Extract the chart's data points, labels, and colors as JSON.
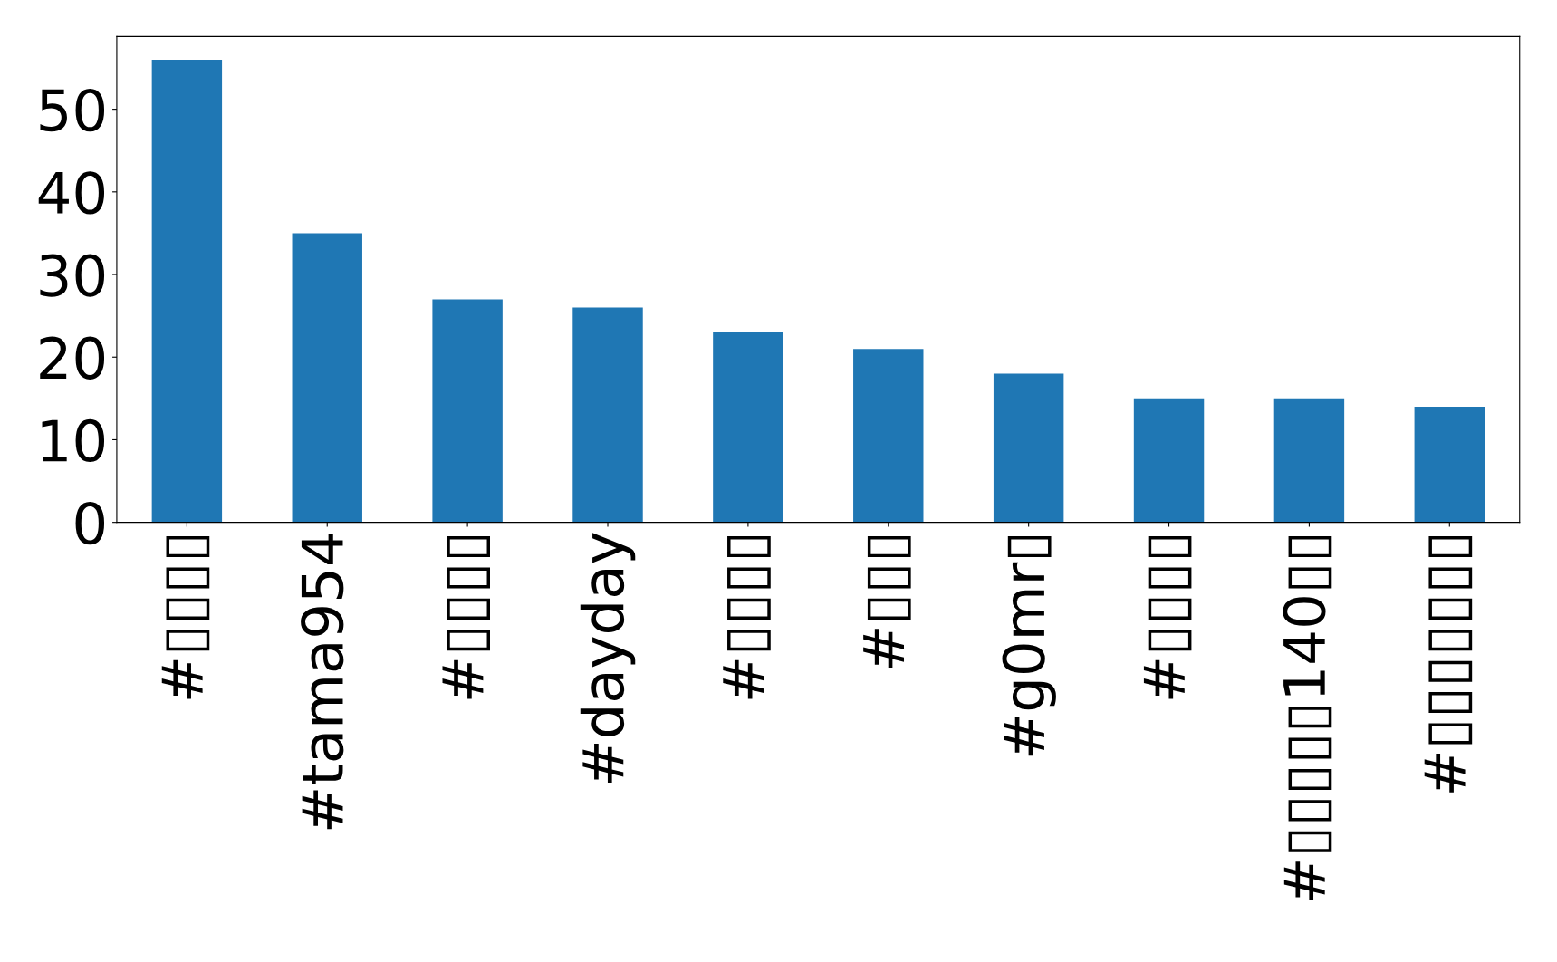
{
  "chart_data": {
    "type": "bar",
    "categories": [
      "#▯▯▯▯",
      "#tama954",
      "#▯▯▯▯",
      "#dayday",
      "#▯▯▯▯",
      "#▯▯▯",
      "#g0mr▯",
      "#▯▯▯▯",
      "#▯▯▯▯▯140▯▯",
      "#▯▯▯▯▯▯▯"
    ],
    "values": [
      56,
      35,
      27,
      26,
      23,
      21,
      18,
      15,
      15,
      14
    ],
    "color": "#1f77b4",
    "ylim": [
      0,
      58.8
    ],
    "yticks": [
      0,
      10,
      20,
      30,
      40,
      50
    ],
    "grid": false
  }
}
